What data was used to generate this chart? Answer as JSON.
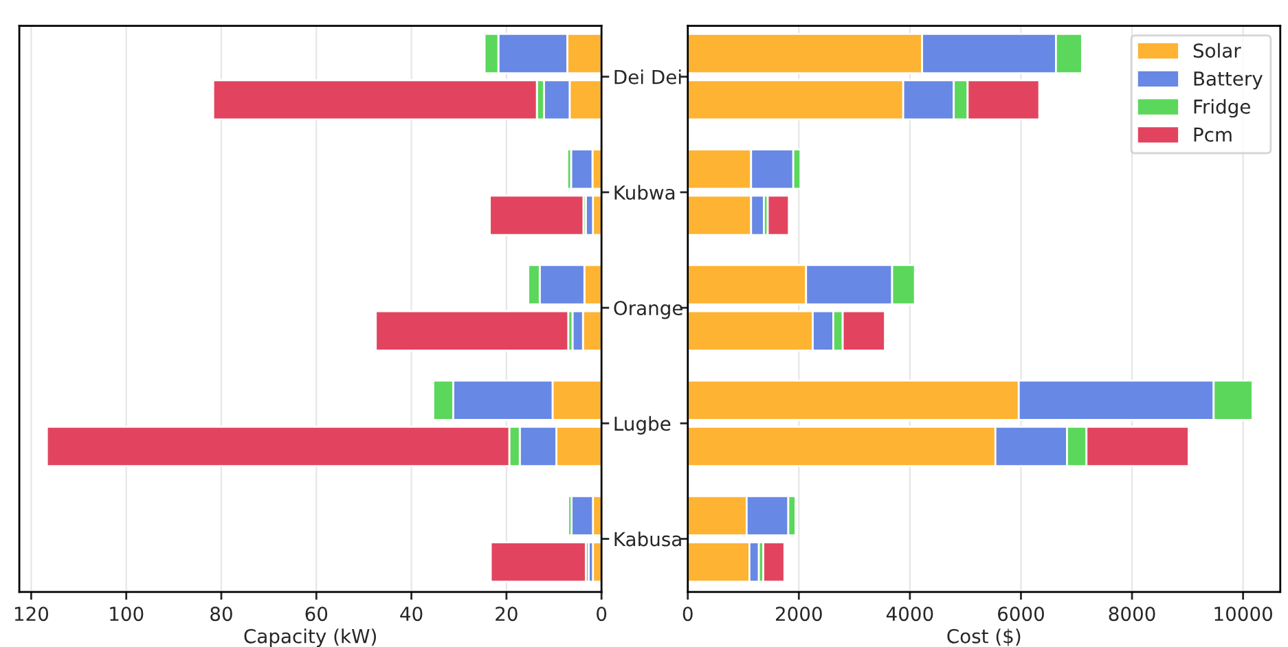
{
  "chart_data": [
    {
      "type": "bar",
      "orientation": "horizontal",
      "stacked": true,
      "xlabel": "Capacity (kW)",
      "categories": [
        null,
        "Dei Dei",
        null,
        null,
        null,
        null,
        "Kubwa",
        null,
        null,
        null,
        null,
        "Orange",
        null,
        null,
        null,
        null,
        "Lugbe",
        null,
        null,
        null,
        null,
        "Kabusa",
        null
      ],
      "series": [
        {
          "color": "#feb332",
          "values": [
            7.2,
            null,
            6.7,
            null,
            null,
            1.9,
            null,
            1.8,
            null,
            null,
            3.6,
            null,
            3.9,
            null,
            null,
            10.3,
            null,
            9.5,
            null,
            null,
            1.8,
            null,
            1.8
          ]
        },
        {
          "color": "#6788e4",
          "values": [
            14.5,
            null,
            5.4,
            null,
            null,
            4.5,
            null,
            1.5,
            null,
            null,
            9.4,
            null,
            2.2,
            null,
            null,
            20.9,
            null,
            7.7,
            null,
            null,
            4.5,
            null,
            0.9
          ]
        },
        {
          "color": "#5bd75b",
          "values": [
            2.9,
            null,
            1.5,
            null,
            null,
            0.8,
            null,
            0.5,
            null,
            null,
            2.4,
            null,
            0.9,
            null,
            null,
            4.2,
            null,
            2.2,
            null,
            null,
            0.7,
            null,
            0.6
          ]
        },
        {
          "color": "#e2445f",
          "values": [
            null,
            null,
            68.1,
            null,
            null,
            null,
            null,
            19.7,
            null,
            null,
            null,
            null,
            40.5,
            null,
            null,
            null,
            null,
            97.3,
            null,
            null,
            null,
            null,
            20.0
          ]
        }
      ],
      "xlim": [
        122.5,
        0
      ],
      "xticks": [
        120,
        100,
        80,
        60,
        40,
        20,
        0
      ],
      "grid": "x",
      "legend": false
    },
    {
      "type": "bar",
      "orientation": "horizontal",
      "stacked": true,
      "xlabel": "Cost ($)",
      "categories": [
        null,
        null,
        null,
        null,
        null,
        null,
        null,
        null,
        null,
        null,
        null,
        null,
        null,
        null,
        null,
        null,
        null,
        null,
        null,
        null,
        null,
        null,
        null
      ],
      "series": [
        {
          "name": "Solar",
          "color": "#feb332",
          "values": [
            4220,
            null,
            3880,
            null,
            null,
            1140,
            null,
            1140,
            null,
            null,
            2130,
            null,
            2250,
            null,
            null,
            5960,
            null,
            5540,
            null,
            null,
            1060,
            null,
            1110
          ]
        },
        {
          "name": "Battery",
          "color": "#6788e4",
          "values": [
            2410,
            null,
            910,
            null,
            null,
            760,
            null,
            230,
            null,
            null,
            1550,
            null,
            370,
            null,
            null,
            3510,
            null,
            1290,
            null,
            null,
            750,
            null,
            170
          ]
        },
        {
          "name": "Fridge",
          "color": "#5bd75b",
          "values": [
            470,
            null,
            250,
            null,
            null,
            130,
            null,
            70,
            null,
            null,
            410,
            null,
            170,
            null,
            null,
            700,
            null,
            350,
            null,
            null,
            130,
            null,
            80
          ]
        },
        {
          "name": "Pcm",
          "color": "#e2445f",
          "values": [
            null,
            null,
            1290,
            null,
            null,
            null,
            null,
            380,
            null,
            null,
            null,
            null,
            760,
            null,
            null,
            null,
            null,
            1840,
            null,
            null,
            null,
            null,
            380
          ]
        }
      ],
      "xlim": [
        0,
        10670
      ],
      "xticks": [
        0,
        2000,
        4000,
        6000,
        8000,
        10000
      ],
      "grid": "x",
      "legend": "top right"
    }
  ]
}
